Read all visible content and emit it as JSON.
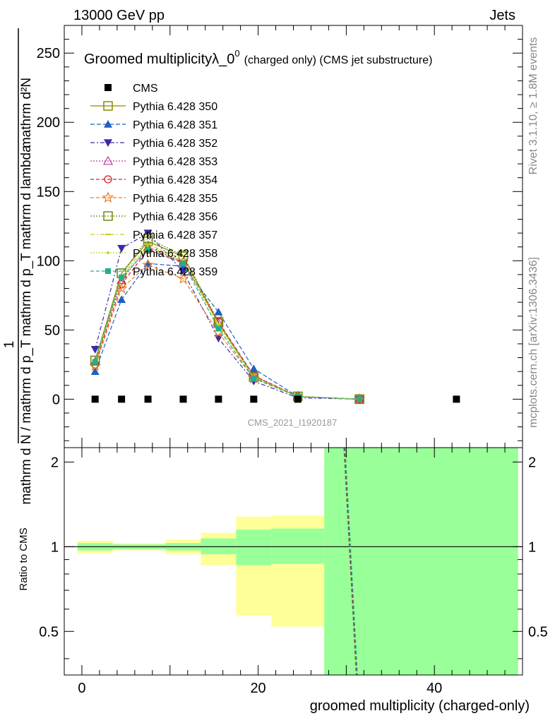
{
  "header": {
    "left": "13000 GeV pp",
    "right": "Jets"
  },
  "side_labels": {
    "rivet": "Rivet 3.1.10, ≥ 1.8M events",
    "mcplots": "mcplots.cern.ch [arXiv:1306.3436]"
  },
  "chart_data": [
    {
      "type": "line",
      "title_main": "Groomed multiplicityλ_0",
      "title_sup": "0",
      "title_suffix": "(charged only) (CMS jet substructure)",
      "ylabel_numerator": "mathrm d²N",
      "ylabel_denominator": "mathrm d N / mathrm d p_T mathrm d p_T mathrm d lambda",
      "ylabel_one": "1",
      "watermark": "CMS_2021_I1920187",
      "xlim": [
        -2,
        50
      ],
      "ylim": [
        -35,
        270
      ],
      "yticks": [
        0,
        50,
        100,
        150,
        200,
        250
      ],
      "grid": false,
      "legend_position": "top-left",
      "data": {
        "name": "CMS",
        "x": [
          1.5,
          4.5,
          7.5,
          11.5,
          15.5,
          19.5,
          24.5,
          42.5
        ],
        "y": [
          0,
          0,
          0,
          0,
          0,
          0,
          0,
          0
        ],
        "color": "#000000"
      },
      "series": [
        {
          "name": "Pythia 6.428 350",
          "color": "#8b8b00",
          "marker": "square-open",
          "dash": "",
          "x": [
            1.5,
            4.5,
            7.5,
            11.5,
            15.5,
            19.5,
            24.5,
            31.5
          ],
          "y": [
            28,
            91,
            114,
            103,
            55,
            16,
            2,
            0
          ]
        },
        {
          "name": "Pythia 6.428 351",
          "color": "#1f5fbf",
          "marker": "triangle-up",
          "dash": "6,3",
          "x": [
            1.5,
            4.5,
            7.5,
            11.5,
            15.5,
            19.5,
            24.5,
            31.5
          ],
          "y": [
            20,
            72,
            98,
            96,
            63,
            22,
            2,
            0
          ]
        },
        {
          "name": "Pythia 6.428 352",
          "color": "#3a2ba8",
          "marker": "triangle-down",
          "dash": "6,3,2,3",
          "x": [
            1.5,
            4.5,
            7.5,
            11.5,
            15.5,
            19.5,
            24.5,
            31.5
          ],
          "y": [
            36,
            109,
            120,
            92,
            44,
            13,
            1,
            0
          ]
        },
        {
          "name": "Pythia 6.428 353",
          "color": "#c0399b",
          "marker": "triangle-open",
          "dash": "2,2",
          "x": [
            1.5,
            4.5,
            7.5,
            11.5,
            15.5,
            19.5,
            24.5,
            31.5
          ],
          "y": [
            27,
            86,
            110,
            99,
            55,
            17,
            2,
            0
          ]
        },
        {
          "name": "Pythia 6.428 354",
          "color": "#d62020",
          "marker": "circle-open",
          "dash": "5,3",
          "x": [
            1.5,
            4.5,
            7.5,
            11.5,
            15.5,
            19.5,
            24.5,
            31.5
          ],
          "y": [
            25,
            83,
            108,
            99,
            56,
            17,
            2,
            0
          ]
        },
        {
          "name": "Pythia 6.428 355",
          "color": "#ee7a22",
          "marker": "star-open",
          "dash": "5,3",
          "x": [
            1.5,
            4.5,
            7.5,
            11.5,
            15.5,
            19.5,
            24.5,
            31.5
          ],
          "y": [
            24,
            80,
            97,
            87,
            48,
            15,
            2,
            0
          ]
        },
        {
          "name": "Pythia 6.428 356",
          "color": "#6f8f10",
          "marker": "square-open",
          "dash": "2,2",
          "x": [
            1.5,
            4.5,
            7.5,
            11.5,
            15.5,
            19.5,
            24.5,
            31.5
          ],
          "y": [
            28,
            91,
            116,
            104,
            56,
            16,
            2,
            0
          ]
        },
        {
          "name": "Pythia 6.428 357",
          "color": "#cccc22",
          "marker": "dash",
          "dash": "6,3,2,3",
          "x": [
            1.5,
            4.5,
            7.5,
            11.5,
            15.5,
            19.5,
            24.5,
            31.5
          ],
          "y": [
            27,
            89,
            112,
            101,
            54,
            16,
            2,
            0
          ]
        },
        {
          "name": "Pythia 6.428 358",
          "color": "#aadd22",
          "marker": "dot",
          "dash": "2,2",
          "x": [
            1.5,
            4.5,
            7.5,
            11.5,
            15.5,
            19.5,
            24.5,
            31.5
          ],
          "y": [
            26,
            88,
            110,
            100,
            53,
            16,
            2,
            0
          ]
        },
        {
          "name": "Pythia 6.428 359",
          "color": "#20b090",
          "marker": "square",
          "dash": "5,3",
          "x": [
            1.5,
            4.5,
            7.5,
            11.5,
            15.5,
            19.5,
            24.5,
            31.5
          ],
          "y": [
            27,
            88,
            108,
            98,
            51,
            15,
            2,
            0
          ]
        }
      ]
    },
    {
      "type": "line",
      "ylabel": "Ratio to CMS",
      "xlabel": "groomed multiplicity (charged-only)",
      "xlim": [
        -2,
        50
      ],
      "ylim": [
        0.35,
        2.25
      ],
      "xticks": [
        0,
        20,
        40
      ],
      "yticks": [
        0.5,
        1,
        2
      ],
      "band_bins": [
        {
          "x0": -0.5,
          "x1": 3.5,
          "inner": [
            0.97,
            1.03
          ],
          "outer": [
            0.95,
            1.05
          ]
        },
        {
          "x0": 3.5,
          "x1": 9.5,
          "inner": [
            0.98,
            1.02
          ],
          "outer": [
            0.97,
            1.03
          ]
        },
        {
          "x0": 9.5,
          "x1": 13.5,
          "inner": [
            0.97,
            1.03
          ],
          "outer": [
            0.94,
            1.06
          ]
        },
        {
          "x0": 13.5,
          "x1": 17.5,
          "inner": [
            0.94,
            1.07
          ],
          "outer": [
            0.86,
            1.12
          ]
        },
        {
          "x0": 17.5,
          "x1": 21.5,
          "inner": [
            0.86,
            1.15
          ],
          "outer": [
            0.57,
            1.28
          ]
        },
        {
          "x0": 21.5,
          "x1": 27.5,
          "inner": [
            0.87,
            1.16
          ],
          "outer": [
            0.52,
            1.29
          ]
        },
        {
          "x0": 27.5,
          "x1": 49.5,
          "inner": [
            0.35,
            2.25
          ],
          "outer": [
            0.35,
            2.25
          ]
        }
      ],
      "reference": 1,
      "ratio_line": {
        "x": [
          29.8,
          31.2
        ],
        "y": [
          2.25,
          0.35
        ],
        "colors": [
          "#8b8b00",
          "#1f5fbf",
          "#d62020",
          "#20b090"
        ]
      }
    }
  ]
}
